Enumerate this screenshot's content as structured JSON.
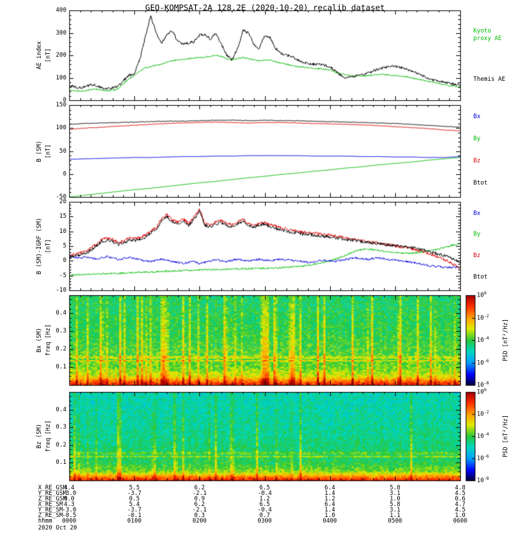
{
  "title": "GEO-KOMPSAT-2A 128.2E (2020-10-20) recalib dataset",
  "date_label": "2020 Oct 20",
  "colors": {
    "black": "#000000",
    "green": "#00bb00",
    "blue": "#0000dd",
    "red": "#dd0000",
    "axis": "#000000",
    "background": "#ffffff"
  },
  "time_axis": {
    "start_min": 0,
    "end_min": 360,
    "major_tick_min": 60,
    "minor_tick_min": 10,
    "hour_labels": [
      "0000",
      "0100",
      "0200",
      "0300",
      "0400",
      "0500",
      "0600"
    ],
    "note": "minutes after 2020-10-20 00:00 UT"
  },
  "chart_data": [
    {
      "id": "ae",
      "type": "line",
      "title": "",
      "ylabel_lines": [
        "AE index",
        "[nT]"
      ],
      "ylim": [
        0,
        400
      ],
      "yticks": [
        0,
        100,
        200,
        300,
        400
      ],
      "yminor": 20,
      "x_step_min": 5,
      "legend": [
        {
          "text": "Kyoto",
          "color": "green"
        },
        {
          "text": "proxy AE",
          "color": "green"
        },
        {
          "text": "Themis AE",
          "color": "black"
        }
      ],
      "series": [
        {
          "name": "Kyoto proxy AE",
          "color": "green",
          "jitter": 3,
          "values": [
            45,
            42,
            40,
            42,
            48,
            50,
            45,
            42,
            45,
            50,
            75,
            95,
            110,
            130,
            145,
            150,
            155,
            160,
            170,
            175,
            180,
            182,
            185,
            188,
            190,
            192,
            195,
            200,
            195,
            185,
            180,
            185,
            190,
            185,
            180,
            175,
            180,
            178,
            172,
            165,
            160,
            155,
            150,
            148,
            145,
            142,
            140,
            138,
            135,
            125,
            118,
            112,
            110,
            108,
            108,
            110,
            112,
            115,
            115,
            112,
            110,
            108,
            105,
            100,
            95,
            90,
            85,
            80,
            75,
            70,
            65,
            62,
            60
          ]
        },
        {
          "name": "Themis AE",
          "color": "black",
          "jitter": 6,
          "values": [
            65,
            60,
            55,
            60,
            70,
            65,
            55,
            50,
            55,
            60,
            90,
            110,
            120,
            180,
            280,
            375,
            300,
            255,
            290,
            310,
            260,
            250,
            255,
            260,
            290,
            295,
            270,
            300,
            250,
            200,
            180,
            230,
            310,
            300,
            250,
            230,
            290,
            280,
            230,
            210,
            200,
            195,
            180,
            170,
            165,
            160,
            160,
            155,
            150,
            130,
            110,
            100,
            105,
            110,
            115,
            120,
            130,
            140,
            145,
            150,
            150,
            145,
            140,
            130,
            120,
            110,
            100,
            90,
            85,
            80,
            75,
            70,
            70
          ]
        }
      ]
    },
    {
      "id": "b_sm",
      "type": "line",
      "ylabel_lines": [
        "B (SM)",
        "[nT]"
      ],
      "ylim": [
        -50,
        150
      ],
      "yticks": [
        -50,
        0,
        50,
        100,
        150
      ],
      "yminor": 10,
      "x_step_min": 15,
      "legend": [
        {
          "text": "Bx",
          "color": "blue"
        },
        {
          "text": "By",
          "color": "green"
        },
        {
          "text": "Bz",
          "color": "red"
        },
        {
          "text": "Btot",
          "color": "black"
        }
      ],
      "series": [
        {
          "name": "By",
          "color": "green",
          "jitter": 0.25,
          "values": [
            -50,
            -46,
            -42,
            -38,
            -34,
            -31,
            -27,
            -23,
            -19,
            -16,
            -12,
            -8,
            -5,
            -1,
            2,
            6,
            9,
            13,
            16,
            20,
            23,
            26,
            30,
            33,
            36
          ]
        },
        {
          "name": "Bx",
          "color": "blue",
          "jitter": 0.3,
          "values": [
            32,
            33,
            34,
            35,
            36,
            36,
            37,
            38,
            38,
            39,
            39,
            40,
            40,
            40,
            40,
            39,
            39,
            39,
            38,
            38,
            37,
            37,
            36,
            36,
            38
          ]
        },
        {
          "name": "Bz",
          "color": "red",
          "jitter": 0.7,
          "values": [
            97,
            100,
            102,
            104,
            106,
            108,
            110,
            111,
            112,
            113,
            112,
            111,
            112,
            112,
            111,
            110,
            109,
            108,
            107,
            105,
            103,
            101,
            99,
            96,
            94
          ]
        },
        {
          "name": "Btot",
          "color": "black",
          "jitter": 0.7,
          "values": [
            108,
            110,
            111,
            112,
            113,
            114,
            115,
            115,
            116,
            117,
            117,
            116,
            117,
            116,
            116,
            115,
            114,
            113,
            112,
            111,
            110,
            108,
            106,
            104,
            102
          ]
        }
      ]
    },
    {
      "id": "b_res",
      "type": "line",
      "ylabel_lines": [
        "B (SM)-IGRF (SM)",
        "[nT]"
      ],
      "ylim": [
        -10,
        20
      ],
      "yticks": [
        -10,
        -5,
        0,
        5,
        10,
        15,
        20
      ],
      "yminor": 1,
      "x_step_min": 5,
      "legend": [
        {
          "text": "Bx",
          "color": "blue"
        },
        {
          "text": "By",
          "color": "green"
        },
        {
          "text": "Bz",
          "color": "red"
        },
        {
          "text": "Btot",
          "color": "black"
        }
      ],
      "series": [
        {
          "name": "By",
          "color": "green",
          "jitter": 0.3,
          "values": [
            -5.0,
            -4.8,
            -4.7,
            -4.6,
            -4.5,
            -4.5,
            -4.4,
            -4.3,
            -4.2,
            -4.2,
            -4.1,
            -4.0,
            -4.0,
            -3.9,
            -3.8,
            -3.8,
            -3.7,
            -3.6,
            -3.5,
            -3.5,
            -3.4,
            -3.3,
            -3.2,
            -3.2,
            -3.1,
            -3.0,
            -3.0,
            -2.9,
            -2.9,
            -2.8,
            -2.8,
            -2.7,
            -2.7,
            -2.6,
            -2.6,
            -2.5,
            -2.5,
            -2.4,
            -2.4,
            -2.3,
            -2.2,
            -2.1,
            -2.0,
            -1.8,
            -1.5,
            -1.2,
            -0.8,
            -0.4,
            0.0,
            0.5,
            1.2,
            2.0,
            2.8,
            3.4,
            3.8,
            4.0,
            3.8,
            3.5,
            3.2,
            3.0,
            2.8,
            2.6,
            2.5,
            2.6,
            2.8,
            3.0,
            3.3,
            3.6,
            4.0,
            4.5,
            5.0,
            5.5,
            5.8
          ]
        },
        {
          "name": "Bx",
          "color": "blue",
          "jitter": 0.35,
          "values": [
            1.5,
            1.2,
            1.0,
            1.4,
            1.0,
            0.6,
            1.2,
            1.5,
            1.0,
            0.5,
            0.8,
            1.2,
            0.8,
            0.4,
            0.0,
            -0.3,
            0.2,
            0.6,
            0.2,
            -0.2,
            -0.5,
            -0.8,
            -0.5,
            -0.2,
            -1.0,
            -0.5,
            0.0,
            0.3,
            0.0,
            -0.3,
            0.2,
            0.5,
            0.2,
            0.0,
            0.3,
            0.5,
            0.3,
            0.0,
            0.3,
            0.6,
            0.4,
            0.2,
            0.0,
            -0.3,
            -0.5,
            -0.3,
            0.0,
            0.2,
            0.0,
            -0.2,
            0.2,
            0.5,
            0.8,
            1.0,
            0.8,
            0.5,
            0.8,
            1.0,
            0.7,
            0.4,
            0.2,
            0.0,
            -0.2,
            -0.5,
            -0.8,
            -1.2,
            -1.5,
            -1.8,
            -2.0,
            -2.2,
            -2.3,
            -2.2,
            -2.0
          ]
        },
        {
          "name": "Bz",
          "color": "red",
          "jitter": 0.5,
          "values": [
            1.8,
            2.2,
            2.7,
            3.2,
            4.2,
            5.7,
            7.2,
            7.7,
            7.2,
            6.2,
            6.7,
            7.7,
            7.5,
            7.9,
            8.7,
            10.2,
            11.2,
            14.2,
            15.7,
            13.7,
            13.2,
            14.2,
            12.7,
            14.7,
            17.5,
            12.7,
            12.2,
            13.2,
            13.7,
            12.7,
            12.2,
            13.2,
            14.2,
            12.7,
            12.2,
            12.7,
            13.2,
            12.2,
            11.7,
            11.2,
            10.7,
            10.2,
            10.2,
            9.7,
            9.7,
            9.5,
            9.2,
            9.0,
            8.7,
            8.4,
            8.1,
            7.8,
            7.5,
            7.2,
            6.9,
            6.6,
            6.3,
            6.0,
            5.7,
            5.4,
            5.1,
            4.8,
            4.5,
            4.1,
            3.7,
            3.2,
            2.6,
            2.0,
            1.3,
            0.5,
            -0.5,
            -1.5,
            -2.8
          ]
        },
        {
          "name": "Btot",
          "color": "black",
          "jitter": 0.5,
          "values": [
            1.0,
            1.5,
            2.0,
            2.5,
            3.5,
            5.0,
            6.5,
            7.0,
            6.5,
            5.5,
            6.0,
            7.0,
            6.8,
            7.2,
            8.0,
            9.5,
            10.5,
            13.5,
            15.0,
            13.0,
            12.5,
            13.5,
            12.0,
            14.0,
            17.0,
            12.0,
            11.5,
            12.5,
            13.0,
            12.0,
            11.5,
            12.5,
            13.5,
            12.0,
            11.5,
            12.0,
            12.5,
            11.5,
            11.0,
            10.5,
            10.0,
            9.5,
            9.5,
            9.0,
            9.0,
            8.8,
            8.5,
            8.3,
            8.0,
            7.8,
            7.5,
            7.2,
            7.0,
            6.8,
            6.5,
            6.3,
            6.0,
            5.8,
            5.5,
            5.3,
            5.2,
            5.0,
            4.8,
            4.5,
            4.2,
            3.8,
            3.3,
            2.8,
            2.3,
            1.8,
            1.2,
            0.5,
            -0.5
          ]
        }
      ]
    },
    {
      "id": "bx_spec",
      "type": "heatmap",
      "ylabel_lines": [
        "Bx (SM)",
        "freq [Hz]"
      ],
      "ylim": [
        0,
        0.5
      ],
      "yticks": [
        0.1,
        0.2,
        0.3,
        0.4
      ],
      "yminor": 0.025,
      "colorbar": {
        "label": "PSD [nT²/Hz]",
        "tick_exponents": [
          0,
          -2,
          -4,
          -6,
          -8
        ],
        "range_log10": [
          -8,
          0
        ]
      },
      "description": "Dynamic power spectrum of Bx (SM); mostly green background with broadband yellow bursts from 0000-0330 UT, strong orange-red power at lowest frequencies, faint narrowband tones near 0.14 Hz",
      "synthesis": {
        "seed": 11,
        "base_profile": [
          [
            0,
            -0.7
          ],
          [
            0.02,
            -1.6
          ],
          [
            0.05,
            -3.1
          ],
          [
            0.1,
            -3.8
          ],
          [
            0.2,
            -4.0
          ],
          [
            0.3,
            -4.2
          ],
          [
            0.5,
            -4.4
          ]
        ],
        "noise": 0.55,
        "stripe_prob": 0.32,
        "stripe_strength": 1.25,
        "stripe_until_min": 220,
        "lines": [
          {
            "freq": 0.135,
            "boost": 0.8
          },
          {
            "freq": 0.155,
            "boost": 0.6
          }
        ]
      }
    },
    {
      "id": "bz_spec",
      "type": "heatmap",
      "ylabel_lines": [
        "Bz (SM)",
        "freq [Hz]"
      ],
      "ylim": [
        0,
        0.5
      ],
      "yticks": [
        0.1,
        0.2,
        0.3,
        0.4
      ],
      "yminor": 0.025,
      "colorbar": {
        "label": "PSD [nT²/Hz]",
        "tick_exponents": [
          0,
          -2,
          -4,
          -6,
          -8
        ],
        "range_log10": [
          -8,
          0
        ]
      },
      "description": "Dynamic power spectrum of Bz (SM); cyan-green background, weaker bursts than Bx, orange-red band at lowest frequencies, narrowband tone near 0.14 Hz",
      "synthesis": {
        "seed": 77,
        "base_profile": [
          [
            0,
            -0.7
          ],
          [
            0.02,
            -1.8
          ],
          [
            0.05,
            -3.6
          ],
          [
            0.1,
            -4.3
          ],
          [
            0.2,
            -4.6
          ],
          [
            0.3,
            -4.8
          ],
          [
            0.5,
            -5.0
          ]
        ],
        "noise": 0.5,
        "stripe_prob": 0.18,
        "stripe_strength": 0.9,
        "stripe_until_min": 220,
        "lines": [
          {
            "freq": 0.135,
            "boost": 0.9
          },
          {
            "freq": 0.155,
            "boost": 0.5
          }
        ]
      }
    }
  ],
  "bottom_rows": [
    {
      "label": "X_RE_GSM",
      "values": [
        "4.4",
        "5.5",
        "6.2",
        "6.5",
        "6.4",
        "5.8",
        "4.8"
      ]
    },
    {
      "label": "Y_RE_GSM",
      "values": [
        "-3.0",
        "-3.7",
        "-2.1",
        "-0.4",
        "1.4",
        "3.1",
        "4.5"
      ]
    },
    {
      "label": "Z_RE_GSM",
      "values": [
        "0.0",
        "0.5",
        "0.9",
        "1.2",
        "1.2",
        "1.0",
        "0.6"
      ]
    },
    {
      "label": "X_RE_SM",
      "values": [
        "4.3",
        "5.4",
        "6.2",
        "6.5",
        "6.4",
        "5.8",
        "4.7"
      ]
    },
    {
      "label": "Y_RE_SM",
      "values": [
        "-3.0",
        "-3.7",
        "-2.1",
        "-0.4",
        "1.4",
        "3.1",
        "4.5"
      ]
    },
    {
      "label": "Z_RE_SM",
      "values": [
        "-0.5",
        "-0.1",
        "0.3",
        "0.7",
        "1.0",
        "1.1",
        "1.0"
      ]
    },
    {
      "label": "hhmm",
      "values": [
        "0000",
        "0100",
        "0200",
        "0300",
        "0400",
        "0500",
        "0600"
      ]
    }
  ]
}
